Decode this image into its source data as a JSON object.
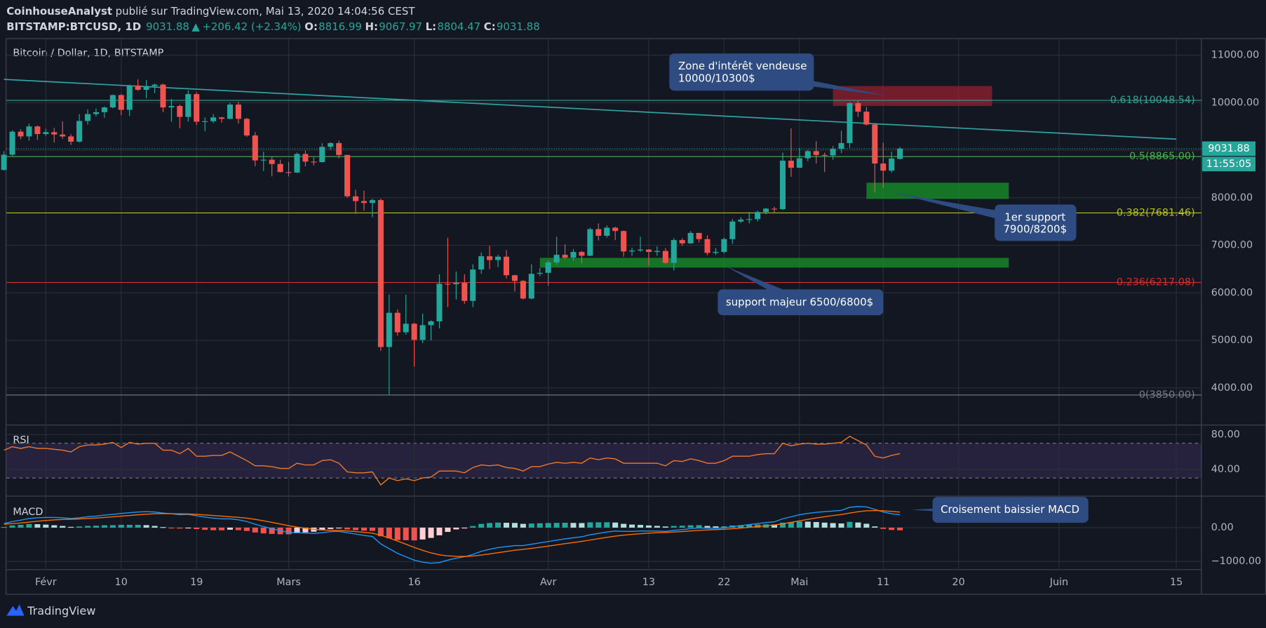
{
  "header": {
    "author": "CoinhouseAnalyst",
    "published": "publié sur TradingView.com, Mai 13, 2020 14:04:56 CEST",
    "symbol": "BITSTAMP:BTCUSD, 1D",
    "arrow": "▲",
    "change": "+206.42 (+2.34%)",
    "ohlc_labels": [
      "O:",
      "H:",
      "L:",
      "C:"
    ]
  },
  "footer": {
    "brand": "TradingView"
  },
  "chart_data": {
    "type": "candlestick",
    "title": "Bitcoin / Dollar, 1D, BITSTAMP",
    "up_color": "#26a69a",
    "down_color": "#ef5350",
    "open": [
      8585,
      8905,
      9390,
      9290,
      9500,
      9340,
      9380,
      9330,
      9290,
      9180,
      9615,
      9760,
      9800,
      9900,
      10160,
      9850,
      10360,
      10270,
      10350,
      10380,
      9900,
      9930,
      9700,
      10180,
      9600,
      9610,
      9690,
      9660,
      9960,
      9660,
      9310,
      8785,
      8800,
      8710,
      8540,
      8530,
      8920,
      8760,
      8750,
      9070,
      9150,
      8900,
      8030,
      7930,
      7890,
      7950,
      4860,
      5580,
      5170,
      5350,
      5010,
      5320,
      5400,
      6190,
      6180,
      6210,
      5830,
      6490,
      6770,
      6690,
      6760,
      6370,
      6250,
      5880,
      6400,
      6420,
      6640,
      6800,
      6740,
      6860,
      6780,
      7340,
      7200,
      7370,
      7300,
      6870,
      6890,
      6910,
      6860,
      6880,
      6630,
      7110,
      7040,
      7260,
      7130,
      6840,
      6860,
      7130,
      7500,
      7540,
      7550,
      7700,
      7770,
      7760,
      8780,
      8630,
      8830,
      8980,
      8900,
      8890,
      9030,
      9150,
      9990,
      9810,
      9540,
      8720,
      8570,
      8816.99
    ],
    "high": [
      8980,
      9420,
      9440,
      9560,
      9520,
      9450,
      9470,
      9610,
      9340,
      9760,
      9860,
      9880,
      9920,
      10170,
      10180,
      10380,
      10490,
      10480,
      10400,
      10400,
      10080,
      9960,
      10260,
      10220,
      9690,
      9760,
      9700,
      10000,
      10020,
      9680,
      9380,
      8970,
      8870,
      8800,
      8750,
      8950,
      8990,
      8850,
      9150,
      9170,
      9200,
      8900,
      8170,
      8150,
      7980,
      7980,
      5960,
      5650,
      5960,
      5370,
      5560,
      5420,
      6390,
      7160,
      6450,
      6390,
      6600,
      6850,
      6990,
      6800,
      6900,
      6380,
      6270,
      6600,
      6520,
      6680,
      7180,
      7020,
      6920,
      6880,
      7370,
      7460,
      7420,
      7390,
      7310,
      6950,
      7180,
      6920,
      6980,
      6940,
      7150,
      7150,
      7300,
      7260,
      7210,
      6940,
      7160,
      7550,
      7590,
      7700,
      7730,
      7790,
      7810,
      8950,
      9460,
      9050,
      9010,
      9190,
      8950,
      9090,
      9410,
      10010,
      10040,
      9910,
      9570,
      9160,
      8970,
      9067.97
    ],
    "low": [
      8570,
      8880,
      9230,
      9200,
      9220,
      9300,
      9160,
      9240,
      9110,
      9160,
      9540,
      9710,
      9680,
      9880,
      9740,
      9720,
      10250,
      10090,
      10200,
      9800,
      9600,
      9460,
      9600,
      9530,
      9400,
      9570,
      9580,
      9650,
      9560,
      9280,
      8660,
      8560,
      8450,
      8530,
      8450,
      8520,
      8660,
      8680,
      8740,
      9010,
      8830,
      8000,
      7660,
      7730,
      7590,
      4780,
      3850,
      5100,
      5120,
      4450,
      4940,
      5000,
      5250,
      5700,
      5860,
      5770,
      5700,
      6400,
      6500,
      6540,
      6300,
      6030,
      5860,
      5860,
      6350,
      6150,
      6590,
      6710,
      6680,
      6620,
      6770,
      7100,
      7160,
      7110,
      6760,
      6780,
      6860,
      6570,
      6780,
      6610,
      6470,
      6990,
      7030,
      7060,
      6790,
      6800,
      6830,
      7030,
      7470,
      7460,
      7500,
      7650,
      7680,
      7740,
      8440,
      8630,
      8770,
      8720,
      8540,
      8800,
      8940,
      9050,
      9700,
      9520,
      8110,
      8200,
      8530,
      8804.47
    ],
    "close": [
      8905,
      9390,
      9290,
      9500,
      9340,
      9380,
      9330,
      9290,
      9180,
      9615,
      9760,
      9800,
      9900,
      10160,
      9850,
      10360,
      10270,
      10350,
      10380,
      9900,
      9930,
      9700,
      10180,
      9600,
      9610,
      9690,
      9660,
      9960,
      9660,
      9310,
      8785,
      8800,
      8710,
      8540,
      8530,
      8920,
      8760,
      8750,
      9070,
      9150,
      8900,
      8030,
      7930,
      7890,
      7950,
      4860,
      5580,
      5170,
      5350,
      5010,
      5320,
      5400,
      6190,
      6180,
      6210,
      5830,
      6490,
      6770,
      6690,
      6760,
      6370,
      6250,
      5880,
      6400,
      6420,
      6640,
      6800,
      6740,
      6860,
      6780,
      7340,
      7200,
      7370,
      7300,
      6870,
      6890,
      6910,
      6860,
      6880,
      6630,
      7110,
      7040,
      7260,
      7130,
      6840,
      6860,
      7130,
      7500,
      7540,
      7550,
      7700,
      7770,
      7760,
      8780,
      8630,
      8830,
      8980,
      8900,
      8890,
      9030,
      9150,
      9990,
      9810,
      9540,
      8720,
      8570,
      8825.46,
      9031.88
    ],
    "countdown": "11:55:05",
    "xlim": [
      0.3,
      143
    ],
    "xticks": [
      {
        "value": 5,
        "label": "Févr"
      },
      {
        "value": 14,
        "label": "10"
      },
      {
        "value": 23,
        "label": "19"
      },
      {
        "value": 34,
        "label": "Mars"
      },
      {
        "value": 49,
        "label": "16"
      },
      {
        "value": 65,
        "label": "Avr"
      },
      {
        "value": 77,
        "label": "13"
      },
      {
        "value": 86,
        "label": "22"
      },
      {
        "value": 95,
        "label": "Mai"
      },
      {
        "value": 105,
        "label": "11"
      },
      {
        "value": 114,
        "label": "20"
      },
      {
        "value": 126,
        "label": "Juin"
      },
      {
        "value": 140,
        "label": "15"
      }
    ],
    "ylim": [
      3235,
      11340
    ],
    "yticks": [
      {
        "value": 4000,
        "label": "4000.00"
      },
      {
        "value": 5000,
        "label": "5000.00"
      },
      {
        "value": 6000,
        "label": "6000.00"
      },
      {
        "value": 7000,
        "label": "7000.00"
      },
      {
        "value": 8000,
        "label": "8000.00"
      },
      {
        "value": 9000,
        "label": "9000.00"
      },
      {
        "value": 10000,
        "label": "10000.00"
      },
      {
        "value": 11000,
        "label": "11000.00"
      }
    ],
    "grid": true,
    "fib_levels": [
      {
        "value": 10048.54,
        "label": "0.618(10048.54)",
        "color": "#3a9f8f"
      },
      {
        "value": 8865.0,
        "label": "0.5(8865.00)",
        "color": "#4caf50"
      },
      {
        "value": 7681.46,
        "label": "0.382(7681.46)",
        "color": "#b5c21a"
      },
      {
        "value": 6217.08,
        "label": "0.236(6217.08)",
        "color": "#d32f2f"
      },
      {
        "value": 3850.0,
        "label": "0(3850.00)",
        "color": "#787b86"
      }
    ],
    "trendline": {
      "x": [
        0,
        140
      ],
      "values": [
        10490,
        9233
      ],
      "color": "#2ea2a5"
    },
    "zones": [
      {
        "x": [
          99,
          118
        ],
        "values": [
          9930,
          10350
        ],
        "color": "rgba(178,34,52,0.6)"
      },
      {
        "x": [
          103,
          120
        ],
        "values": [
          7976,
          8316
        ],
        "color": "rgba(22,140,40,0.8)"
      },
      {
        "x": [
          64,
          120
        ],
        "values": [
          6530,
          6735
        ],
        "color": "rgba(22,140,40,0.8)"
      }
    ],
    "annotations": [
      {
        "lines": [
          "Zone d'intérêt vendeuse",
          "10000/10300$"
        ]
      },
      {
        "lines": [
          "1er support",
          "7900/8200$"
        ]
      },
      {
        "lines": [
          "support majeur 6500/6800$"
        ]
      },
      {
        "lines": [
          "Croisement baissier MACD"
        ]
      }
    ],
    "rsi": {
      "title": "RSI",
      "color": "#f0782a",
      "ylim": [
        10,
        90
      ],
      "yticks": [
        {
          "value": 40,
          "label": "40.00"
        },
        {
          "value": 80,
          "label": "80.00"
        }
      ],
      "bands": [
        30,
        70
      ],
      "values": [
        62,
        66,
        64,
        66,
        64,
        64,
        63,
        62,
        60,
        66,
        68,
        68,
        69,
        71,
        65,
        71,
        69,
        70,
        70,
        62,
        62,
        58,
        64,
        55,
        55,
        56,
        56,
        60,
        55,
        50,
        44,
        44,
        43,
        41,
        41,
        47,
        45,
        45,
        50,
        51,
        47,
        37,
        36,
        36,
        37,
        22,
        30,
        27,
        29,
        27,
        30,
        31,
        38,
        38,
        38,
        36,
        42,
        45,
        44,
        45,
        42,
        41,
        38,
        43,
        43,
        46,
        48,
        47,
        48,
        47,
        53,
        51,
        53,
        52,
        47,
        47,
        47,
        47,
        47,
        44,
        50,
        49,
        52,
        50,
        47,
        47,
        50,
        55,
        55,
        55,
        57,
        58,
        58,
        70,
        67,
        69,
        70,
        69,
        69,
        70,
        71,
        78,
        73,
        68,
        55,
        53,
        56,
        58
      ]
    },
    "macd": {
      "title": "MACD",
      "macd_color": "#2196f3",
      "signal_color": "#ff6d00",
      "ylim": [
        -1240,
        905
      ],
      "yticks": [
        {
          "value": 0,
          "label": "0.00"
        },
        {
          "value": -1000,
          "label": "−1000.00"
        }
      ],
      "macd": [
        120,
        180,
        220,
        270,
        290,
        300,
        300,
        290,
        270,
        290,
        320,
        340,
        370,
        390,
        420,
        440,
        460,
        470,
        460,
        430,
        410,
        380,
        390,
        350,
        310,
        280,
        260,
        260,
        230,
        180,
        100,
        30,
        -30,
        -90,
        -140,
        -150,
        -160,
        -170,
        -150,
        -120,
        -110,
        -150,
        -190,
        -230,
        -260,
        -480,
        -620,
        -760,
        -860,
        -960,
        -1020,
        -1050,
        -1030,
        -960,
        -900,
        -860,
        -790,
        -700,
        -640,
        -590,
        -560,
        -530,
        -530,
        -490,
        -450,
        -410,
        -370,
        -330,
        -300,
        -270,
        -210,
        -170,
        -130,
        -100,
        -110,
        -110,
        -100,
        -100,
        -100,
        -110,
        -80,
        -60,
        -30,
        -10,
        -20,
        -20,
        -10,
        30,
        60,
        90,
        120,
        150,
        170,
        260,
        320,
        380,
        420,
        450,
        470,
        490,
        510,
        600,
        620,
        610,
        540,
        460,
        410,
        380
      ],
      "signal": [
        100,
        116,
        137,
        164,
        189,
        211,
        229,
        241,
        247,
        256,
        269,
        283,
        300,
        318,
        338,
        358,
        378,
        396,
        409,
        413,
        412,
        406,
        403,
        392,
        376,
        357,
        338,
        322,
        304,
        279,
        243,
        201,
        155,
        106,
        57,
        16,
        -19,
        -49,
        -69,
        -79,
        -85,
        -98,
        -116,
        -139,
        -163,
        -226,
        -305,
        -396,
        -489,
        -583,
        -670,
        -746,
        -803,
        -834,
        -847,
        -850,
        -838,
        -810,
        -776,
        -739,
        -703,
        -668,
        -641,
        -611,
        -579,
        -545,
        -510,
        -474,
        -439,
        -405,
        -366,
        -327,
        -288,
        -250,
        -222,
        -200,
        -180,
        -164,
        -151,
        -143,
        -130,
        -116,
        -99,
        -81,
        -69,
        -59,
        -49,
        -33,
        -14,
        7,
        30,
        54,
        77,
        114,
        155,
        200,
        244,
        285,
        322,
        356,
        387,
        430,
        468,
        496,
        505,
        496,
        479,
        459
      ],
      "histogram": [
        20,
        64,
        83,
        106,
        101,
        89,
        71,
        49,
        23,
        34,
        51,
        57,
        70,
        72,
        82,
        82,
        82,
        74,
        51,
        17,
        -2,
        -26,
        -13,
        -42,
        -66,
        -77,
        -78,
        -62,
        -74,
        -99,
        -143,
        -171,
        -185,
        -196,
        -197,
        -166,
        -141,
        -121,
        -81,
        -41,
        -25,
        -52,
        -74,
        -91,
        -97,
        -254,
        -315,
        -364,
        -371,
        -377,
        -350,
        -304,
        -227,
        -126,
        -53,
        -10,
        48,
        110,
        136,
        149,
        143,
        138,
        111,
        121,
        129,
        135,
        140,
        144,
        139,
        135,
        156,
        157,
        158,
        150,
        112,
        90,
        80,
        64,
        51,
        33,
        50,
        56,
        69,
        71,
        49,
        39,
        39,
        63,
        74,
        83,
        90,
        96,
        93,
        146,
        165,
        180,
        176,
        165,
        148,
        134,
        123,
        170,
        152,
        114,
        35,
        -36,
        -69,
        -79
      ]
    }
  }
}
